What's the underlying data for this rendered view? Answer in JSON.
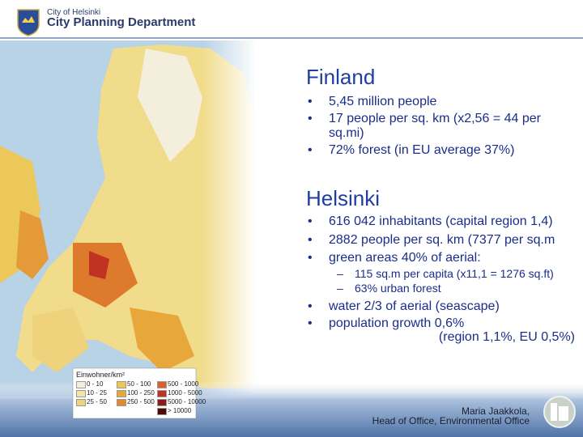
{
  "header": {
    "org": "City of Helsinki",
    "department": "City Planning Department"
  },
  "sections": [
    {
      "title": "Finland",
      "bullets": [
        {
          "text": "5,45 million people"
        },
        {
          "text": "17 people per sq. km (x2,56 = 44 per sq.mi)"
        },
        {
          "text": "72% forest (in EU average 37%)"
        }
      ]
    },
    {
      "title": "Helsinki",
      "bullets": [
        {
          "text": "616 042 inhabitants (capital region 1,4)"
        },
        {
          "text": "2882 people per sq. km (7377 per sq.m"
        },
        {
          "text": "green areas 40% of aerial:",
          "sub": [
            "115 sq.m per capita (x11,1 = 1276 sq.ft)",
            "63% urban forest"
          ]
        },
        {
          "text": "water 2/3 of aerial (seascape)"
        },
        {
          "text": "population growth 0,6%",
          "more": "(region 1,1%, EU 0,5%)"
        }
      ]
    }
  ],
  "legend": {
    "title": "Einwohner/km²",
    "items": [
      {
        "label": "0 - 10",
        "color": "#f4efdc"
      },
      {
        "label": "10 - 25",
        "color": "#f3e3a8"
      },
      {
        "label": "25 - 50",
        "color": "#efd27c"
      },
      {
        "label": "50 - 100",
        "color": "#edc84e"
      },
      {
        "label": "100 - 250",
        "color": "#e8a73a"
      },
      {
        "label": "250 - 500",
        "color": "#df8a2c"
      },
      {
        "label": "500 - 1000",
        "color": "#dc5f2a"
      },
      {
        "label": "1000 - 5000",
        "color": "#c03222"
      },
      {
        "label": "5000 - 10000",
        "color": "#8e1a16"
      },
      {
        "label": "> 10000",
        "color": "#4e0a08"
      }
    ]
  },
  "footer": {
    "name": "Maria Jaakkola,",
    "role": "Head of Office, Environmental Office"
  }
}
